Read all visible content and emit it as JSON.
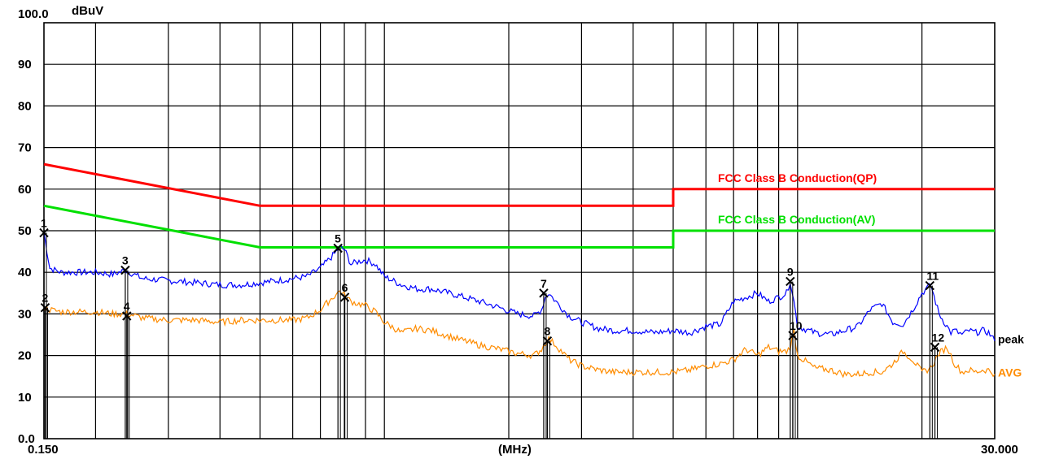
{
  "chart_data": {
    "type": "line",
    "ylabel": "dBuV",
    "xlabel": "(MHz)",
    "x_scale": "log",
    "xlim": [
      0.15,
      30.0
    ],
    "ylim": [
      0,
      100
    ],
    "x_tick_labels": [
      "0.150",
      "30.000"
    ],
    "y_ticks": [
      {
        "value": 100,
        "label": "100.0"
      },
      {
        "value": 90,
        "label": "90"
      },
      {
        "value": 80,
        "label": "80"
      },
      {
        "value": 70,
        "label": "70"
      },
      {
        "value": 60,
        "label": "60"
      },
      {
        "value": 50,
        "label": "50"
      },
      {
        "value": 40,
        "label": "40"
      },
      {
        "value": 30,
        "label": "30"
      },
      {
        "value": 20,
        "label": "20"
      },
      {
        "value": 10,
        "label": "10"
      },
      {
        "value": 0,
        "label": "0.0"
      }
    ],
    "grid": true,
    "colors": {
      "qp_limit": "#ff0000",
      "av_limit": "#00e000",
      "peak": "#0000ff",
      "avg": "#ff8c00"
    },
    "limits": [
      {
        "name": "FCC Class B Conduction(QP)",
        "color": "#ff0000",
        "x": [
          0.15,
          0.5,
          5.0,
          5.0,
          30.0
        ],
        "y": [
          66,
          56,
          56,
          60,
          60
        ]
      },
      {
        "name": "FCC Class B Conduction(AV)",
        "color": "#00e000",
        "x": [
          0.15,
          0.5,
          5.0,
          5.0,
          30.0
        ],
        "y": [
          56,
          46,
          46,
          50,
          50
        ]
      }
    ],
    "series": [
      {
        "name": "peak",
        "color": "#0000ff",
        "x": [
          0.15,
          0.155,
          0.165,
          0.18,
          0.2,
          0.22,
          0.236,
          0.26,
          0.3,
          0.35,
          0.4,
          0.45,
          0.5,
          0.55,
          0.6,
          0.65,
          0.7,
          0.75,
          0.78,
          0.8,
          0.83,
          0.86,
          0.9,
          0.95,
          1.0,
          1.1,
          1.2,
          1.3,
          1.5,
          1.7,
          1.9,
          2.1,
          2.3,
          2.4,
          2.45,
          2.5,
          2.6,
          2.8,
          3.0,
          3.3,
          3.6,
          4.0,
          4.5,
          5.0,
          5.5,
          6.0,
          6.5,
          7.0,
          7.5,
          8.0,
          8.5,
          9.0,
          9.4,
          9.6,
          9.8,
          10.0,
          11.0,
          12.0,
          13.0,
          14.0,
          15.0,
          16.0,
          17.0,
          18.0,
          19.0,
          20.0,
          21.0,
          22.0,
          23.0,
          23.5,
          24.0,
          25.0,
          26.0,
          27.0,
          28.0,
          29.0,
          30.0
        ],
        "y": [
          49.5,
          41.0,
          40.0,
          40.0,
          40.0,
          39.5,
          40.5,
          38.5,
          38.0,
          37.5,
          37.0,
          37.0,
          37.5,
          38.0,
          38.5,
          39.0,
          41.0,
          44.0,
          46.0,
          45.5,
          42.0,
          42.5,
          43.0,
          42.0,
          39.0,
          37.0,
          36.0,
          36.0,
          34.5,
          33.0,
          31.5,
          30.0,
          29.5,
          31.0,
          34.0,
          35.0,
          33.0,
          29.5,
          28.0,
          26.5,
          26.0,
          26.0,
          25.5,
          26.0,
          25.5,
          27.0,
          27.5,
          33.0,
          34.0,
          35.0,
          33.0,
          34.0,
          35.0,
          38.0,
          33.0,
          27.0,
          25.5,
          25.0,
          26.0,
          27.0,
          31.0,
          32.5,
          28.0,
          27.5,
          31.0,
          35.0,
          37.0,
          30.0,
          27.0,
          25.5,
          26.0,
          25.0,
          26.0,
          25.5,
          26.0,
          25.5,
          23.5
        ]
      },
      {
        "name": "AVG",
        "color": "#ff8c00",
        "x": [
          0.15,
          0.155,
          0.165,
          0.18,
          0.2,
          0.22,
          0.24,
          0.26,
          0.3,
          0.35,
          0.4,
          0.45,
          0.5,
          0.55,
          0.6,
          0.65,
          0.7,
          0.75,
          0.78,
          0.8,
          0.83,
          0.86,
          0.9,
          0.95,
          1.0,
          1.1,
          1.2,
          1.3,
          1.5,
          1.7,
          1.9,
          2.1,
          2.3,
          2.4,
          2.45,
          2.5,
          2.6,
          2.8,
          3.0,
          3.3,
          3.6,
          4.0,
          4.5,
          5.0,
          5.5,
          6.0,
          6.5,
          7.0,
          7.5,
          8.0,
          8.5,
          9.0,
          9.4,
          9.6,
          9.8,
          10.0,
          11.0,
          12.0,
          13.0,
          14.0,
          15.0,
          16.0,
          17.0,
          18.0,
          19.0,
          20.0,
          21.0,
          22.0,
          23.0,
          23.5,
          24.0,
          25.0,
          26.0,
          27.0,
          28.0,
          29.0,
          30.0
        ],
        "y": [
          31.5,
          31.0,
          30.5,
          30.5,
          30.5,
          30.0,
          30.0,
          29.0,
          28.5,
          28.5,
          28.0,
          28.5,
          28.5,
          28.5,
          28.5,
          29.0,
          31.0,
          34.0,
          35.5,
          34.5,
          33.0,
          32.5,
          32.0,
          30.5,
          28.0,
          25.5,
          26.5,
          26.0,
          24.0,
          22.5,
          21.5,
          20.5,
          20.0,
          21.5,
          23.0,
          24.0,
          22.5,
          19.0,
          17.5,
          16.5,
          16.0,
          16.0,
          16.0,
          16.0,
          16.5,
          17.5,
          18.0,
          19.0,
          21.5,
          20.0,
          22.0,
          21.0,
          21.0,
          22.0,
          26.0,
          20.0,
          17.0,
          16.5,
          15.5,
          15.5,
          16.0,
          16.0,
          18.0,
          21.0,
          19.0,
          16.0,
          17.0,
          20.5,
          22.0,
          20.0,
          18.0,
          16.0,
          16.5,
          16.0,
          16.5,
          16.5,
          15.5
        ]
      }
    ],
    "markers": [
      {
        "label": "1",
        "x": 0.15,
        "y": 49.5
      },
      {
        "label": "2",
        "x": 0.151,
        "y": 31.5
      },
      {
        "label": "3",
        "x": 0.236,
        "y": 40.5
      },
      {
        "label": "4",
        "x": 0.238,
        "y": 29.5
      },
      {
        "label": "5",
        "x": 0.772,
        "y": 45.8
      },
      {
        "label": "6",
        "x": 0.802,
        "y": 34.0
      },
      {
        "label": "7",
        "x": 2.43,
        "y": 35.0
      },
      {
        "label": "8",
        "x": 2.48,
        "y": 23.5
      },
      {
        "label": "9",
        "x": 9.6,
        "y": 37.8
      },
      {
        "label": "10",
        "x": 9.74,
        "y": 24.8
      },
      {
        "label": "11",
        "x": 20.9,
        "y": 36.8
      },
      {
        "label": "12",
        "x": 21.5,
        "y": 22.0
      }
    ]
  }
}
